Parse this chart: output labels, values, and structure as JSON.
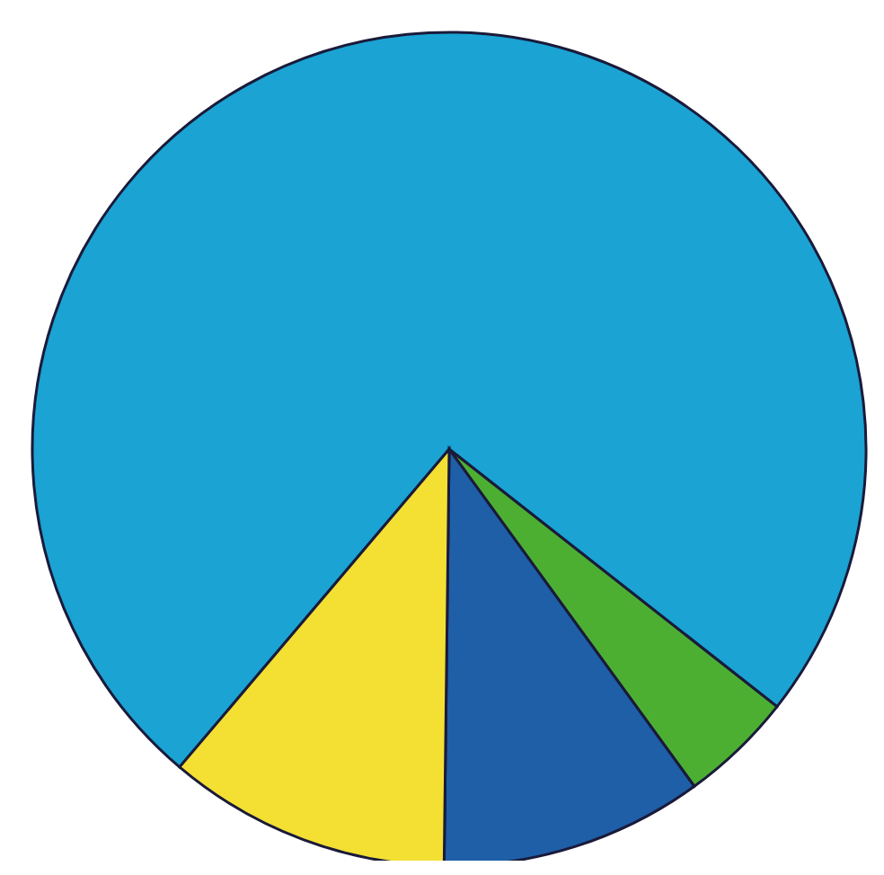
{
  "chart_data": {
    "type": "pie",
    "categories": [
      null,
      null,
      null,
      null
    ],
    "values": [
      74.4,
      4.4,
      10.2,
      11.0
    ],
    "colors": [
      "#1aa3d3",
      "#4caf32",
      "#1e5fa8",
      "#f3e033"
    ]
  }
}
